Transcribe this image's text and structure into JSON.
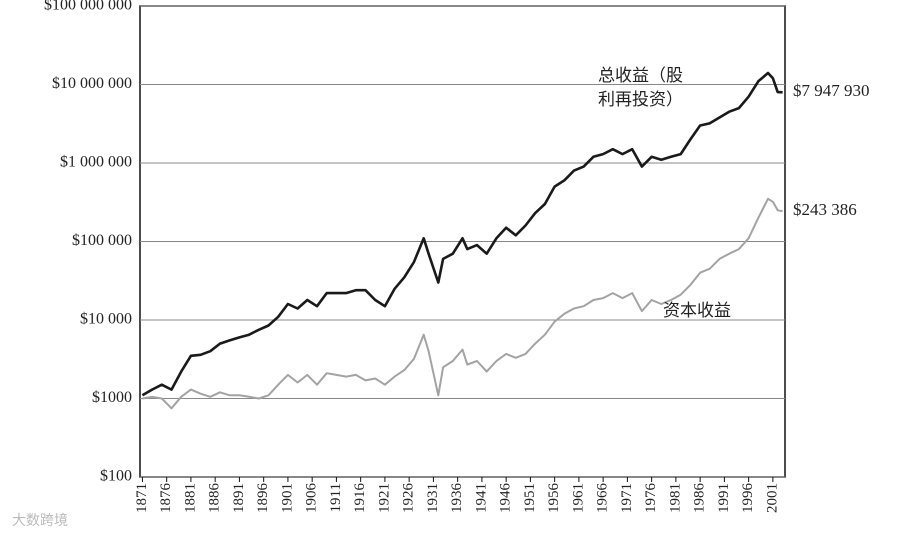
{
  "chart_data": {
    "type": "line",
    "log_scale": true,
    "grid": true,
    "watermark": "大数跨境",
    "xlim": [
      1870.5,
      2003.5
    ],
    "ylim": [
      100,
      100000000
    ],
    "xticks": [
      1871,
      1876,
      1881,
      1886,
      1891,
      1896,
      1901,
      1906,
      1911,
      1916,
      1921,
      1926,
      1931,
      1936,
      1941,
      1946,
      1951,
      1956,
      1961,
      1966,
      1971,
      1976,
      1981,
      1986,
      1991,
      1996,
      2001
    ],
    "yticks": [
      {
        "value": 100,
        "label": "$100"
      },
      {
        "value": 1000,
        "label": "$1000"
      },
      {
        "value": 10000,
        "label": "$10 000"
      },
      {
        "value": 100000,
        "label": "$100 000"
      },
      {
        "value": 1000000,
        "label": "$1 000 000"
      },
      {
        "value": 10000000,
        "label": "$10 000 000"
      },
      {
        "value": 100000000,
        "label": "$100 000 000"
      }
    ],
    "x": [
      1871,
      1873,
      1875,
      1877,
      1879,
      1881,
      1883,
      1885,
      1887,
      1889,
      1891,
      1893,
      1895,
      1897,
      1899,
      1901,
      1903,
      1905,
      1907,
      1909,
      1911,
      1913,
      1915,
      1917,
      1919,
      1921,
      1923,
      1925,
      1927,
      1929,
      1930,
      1932,
      1933,
      1935,
      1937,
      1938,
      1940,
      1942,
      1944,
      1946,
      1948,
      1950,
      1952,
      1954,
      1956,
      1958,
      1960,
      1962,
      1964,
      1966,
      1968,
      1970,
      1972,
      1974,
      1976,
      1978,
      1980,
      1982,
      1984,
      1986,
      1988,
      1990,
      1992,
      1994,
      1996,
      1998,
      2000,
      2001,
      2002,
      2003
    ],
    "series": [
      {
        "name": "总收益（股利再投资）",
        "color": "#1a1a1a",
        "values": [
          1100,
          1300,
          1500,
          1300,
          2200,
          3500,
          3600,
          4000,
          5000,
          5500,
          6000,
          6500,
          7500,
          8500,
          11000,
          16000,
          14000,
          18000,
          15000,
          22000,
          22000,
          22000,
          24000,
          24000,
          18000,
          15000,
          25000,
          35000,
          55000,
          110000,
          70000,
          30000,
          60000,
          70000,
          110000,
          80000,
          90000,
          70000,
          110000,
          150000,
          120000,
          160000,
          230000,
          300000,
          500000,
          600000,
          800000,
          900000,
          1200000,
          1300000,
          1500000,
          1300000,
          1500000,
          900000,
          1200000,
          1100000,
          1200000,
          1300000,
          2000000,
          3000000,
          3200000,
          3800000,
          4500000,
          5000000,
          7000000,
          11000000,
          14000000,
          12000000,
          8000000,
          7947930
        ],
        "end_label": {
          "value": 7947930,
          "label": "$7 947 930"
        }
      },
      {
        "name": "资本收益",
        "color": "#a3a3a3",
        "values": [
          1000,
          1050,
          1000,
          750,
          1050,
          1300,
          1150,
          1050,
          1200,
          1100,
          1100,
          1050,
          1000,
          1100,
          1500,
          2000,
          1600,
          2000,
          1500,
          2100,
          2000,
          1900,
          2000,
          1700,
          1800,
          1500,
          1900,
          2300,
          3200,
          6500,
          4000,
          1100,
          2500,
          3000,
          4200,
          2700,
          3000,
          2200,
          3000,
          3700,
          3300,
          3700,
          5000,
          6500,
          9500,
          12000,
          14000,
          15000,
          18000,
          19000,
          22000,
          19000,
          22000,
          13000,
          18000,
          16000,
          18000,
          21000,
          28000,
          40000,
          45000,
          60000,
          70000,
          80000,
          110000,
          200000,
          350000,
          320000,
          250000,
          243386
        ],
        "end_label": {
          "value": 243386,
          "label": "$243 386"
        }
      }
    ]
  }
}
